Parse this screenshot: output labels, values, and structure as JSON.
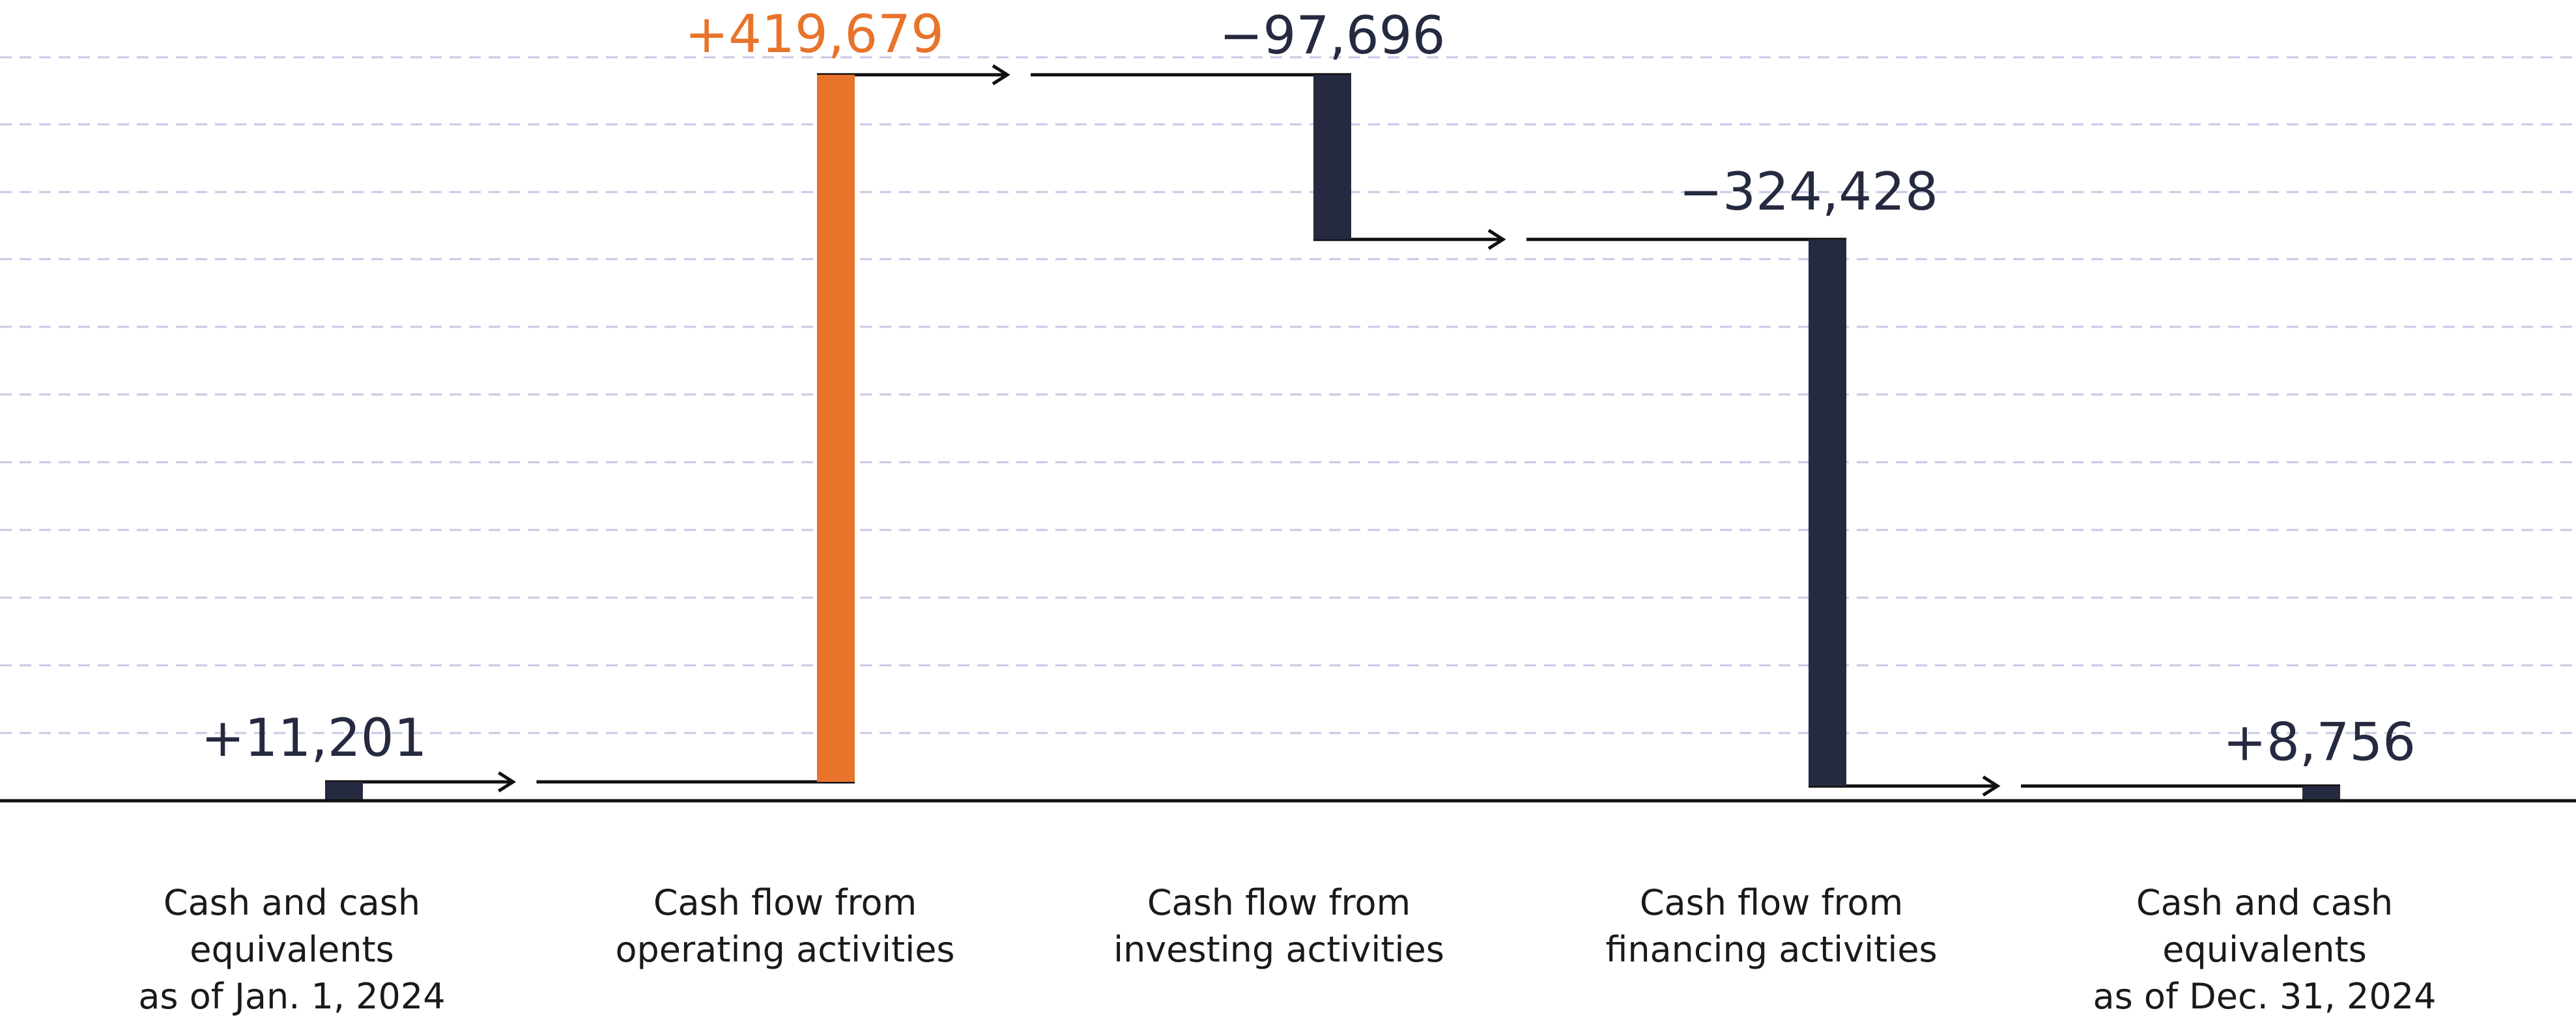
{
  "chart_data": {
    "type": "bar",
    "subtype": "waterfall",
    "categories": [
      [
        "Cash and cash",
        "equivalents",
        "as of Jan. 1, 2024"
      ],
      [
        "Cash flow from",
        "operating activities"
      ],
      [
        "Cash flow from",
        "investing activities"
      ],
      [
        "Cash flow from",
        "financing activities"
      ],
      [
        "Cash and cash",
        "equivalents",
        "as of Dec. 31, 2024"
      ]
    ],
    "values": [
      11201,
      419679,
      -97696,
      -324428,
      8756
    ],
    "value_labels": [
      "+11,201",
      "+419,679",
      "−97,696",
      "−324,428",
      "+8,756"
    ],
    "bar_kinds": [
      "total",
      "delta",
      "delta",
      "delta",
      "total"
    ],
    "bar_colors": [
      "#252a40",
      "#e8732b",
      "#252a40",
      "#252a40",
      "#252a40"
    ],
    "label_colors": [
      "#252a40",
      "#e8732b",
      "#252a40",
      "#252a40",
      "#252a40"
    ],
    "ylim": [
      0,
      440000
    ],
    "grid": true,
    "grid_style": "dashed horizontal",
    "connectors": "arrows between bars"
  }
}
